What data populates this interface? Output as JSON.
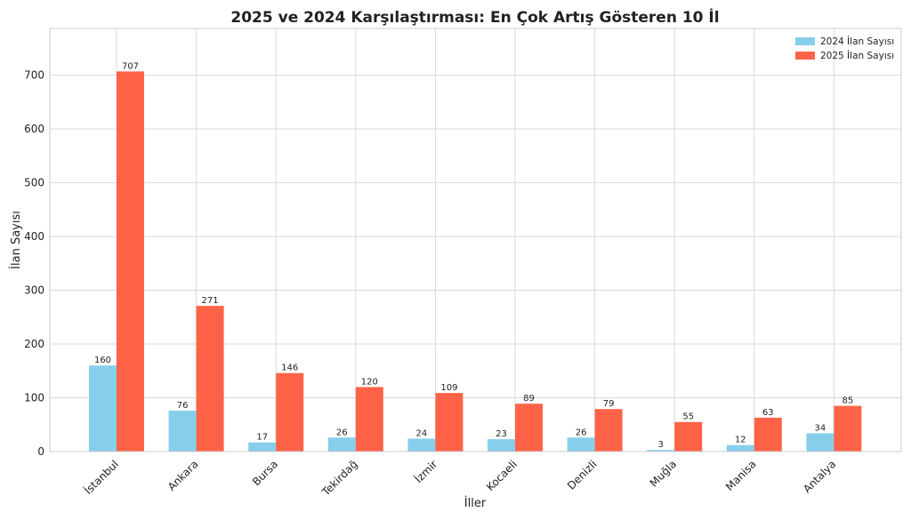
{
  "chart_data": {
    "type": "bar",
    "title": "2025 ve 2024 Karşılaştırması: En Çok Artış Gösteren 10 İl",
    "xlabel": "İller",
    "ylabel": "İlan Sayısı",
    "categories": [
      "İstanbul",
      "Ankara",
      "Bursa",
      "Tekirdağ",
      "İzmir",
      "Kocaeli",
      "Denizli",
      "Muğla",
      "Manisa",
      "Antalya"
    ],
    "series": [
      {
        "name": "2024 İlan Sayısı",
        "color": "#87ceeb",
        "values": [
          160,
          76,
          17,
          26,
          24,
          23,
          26,
          3,
          12,
          34
        ]
      },
      {
        "name": "2025 İlan Sayısı",
        "color": "#ff6347",
        "values": [
          707,
          271,
          146,
          120,
          109,
          89,
          79,
          55,
          63,
          85
        ]
      }
    ],
    "ylim": [
      0,
      787
    ],
    "yticks": [
      0,
      100,
      200,
      300,
      400,
      500,
      600,
      700
    ],
    "grid": true,
    "legend": "top-right"
  }
}
